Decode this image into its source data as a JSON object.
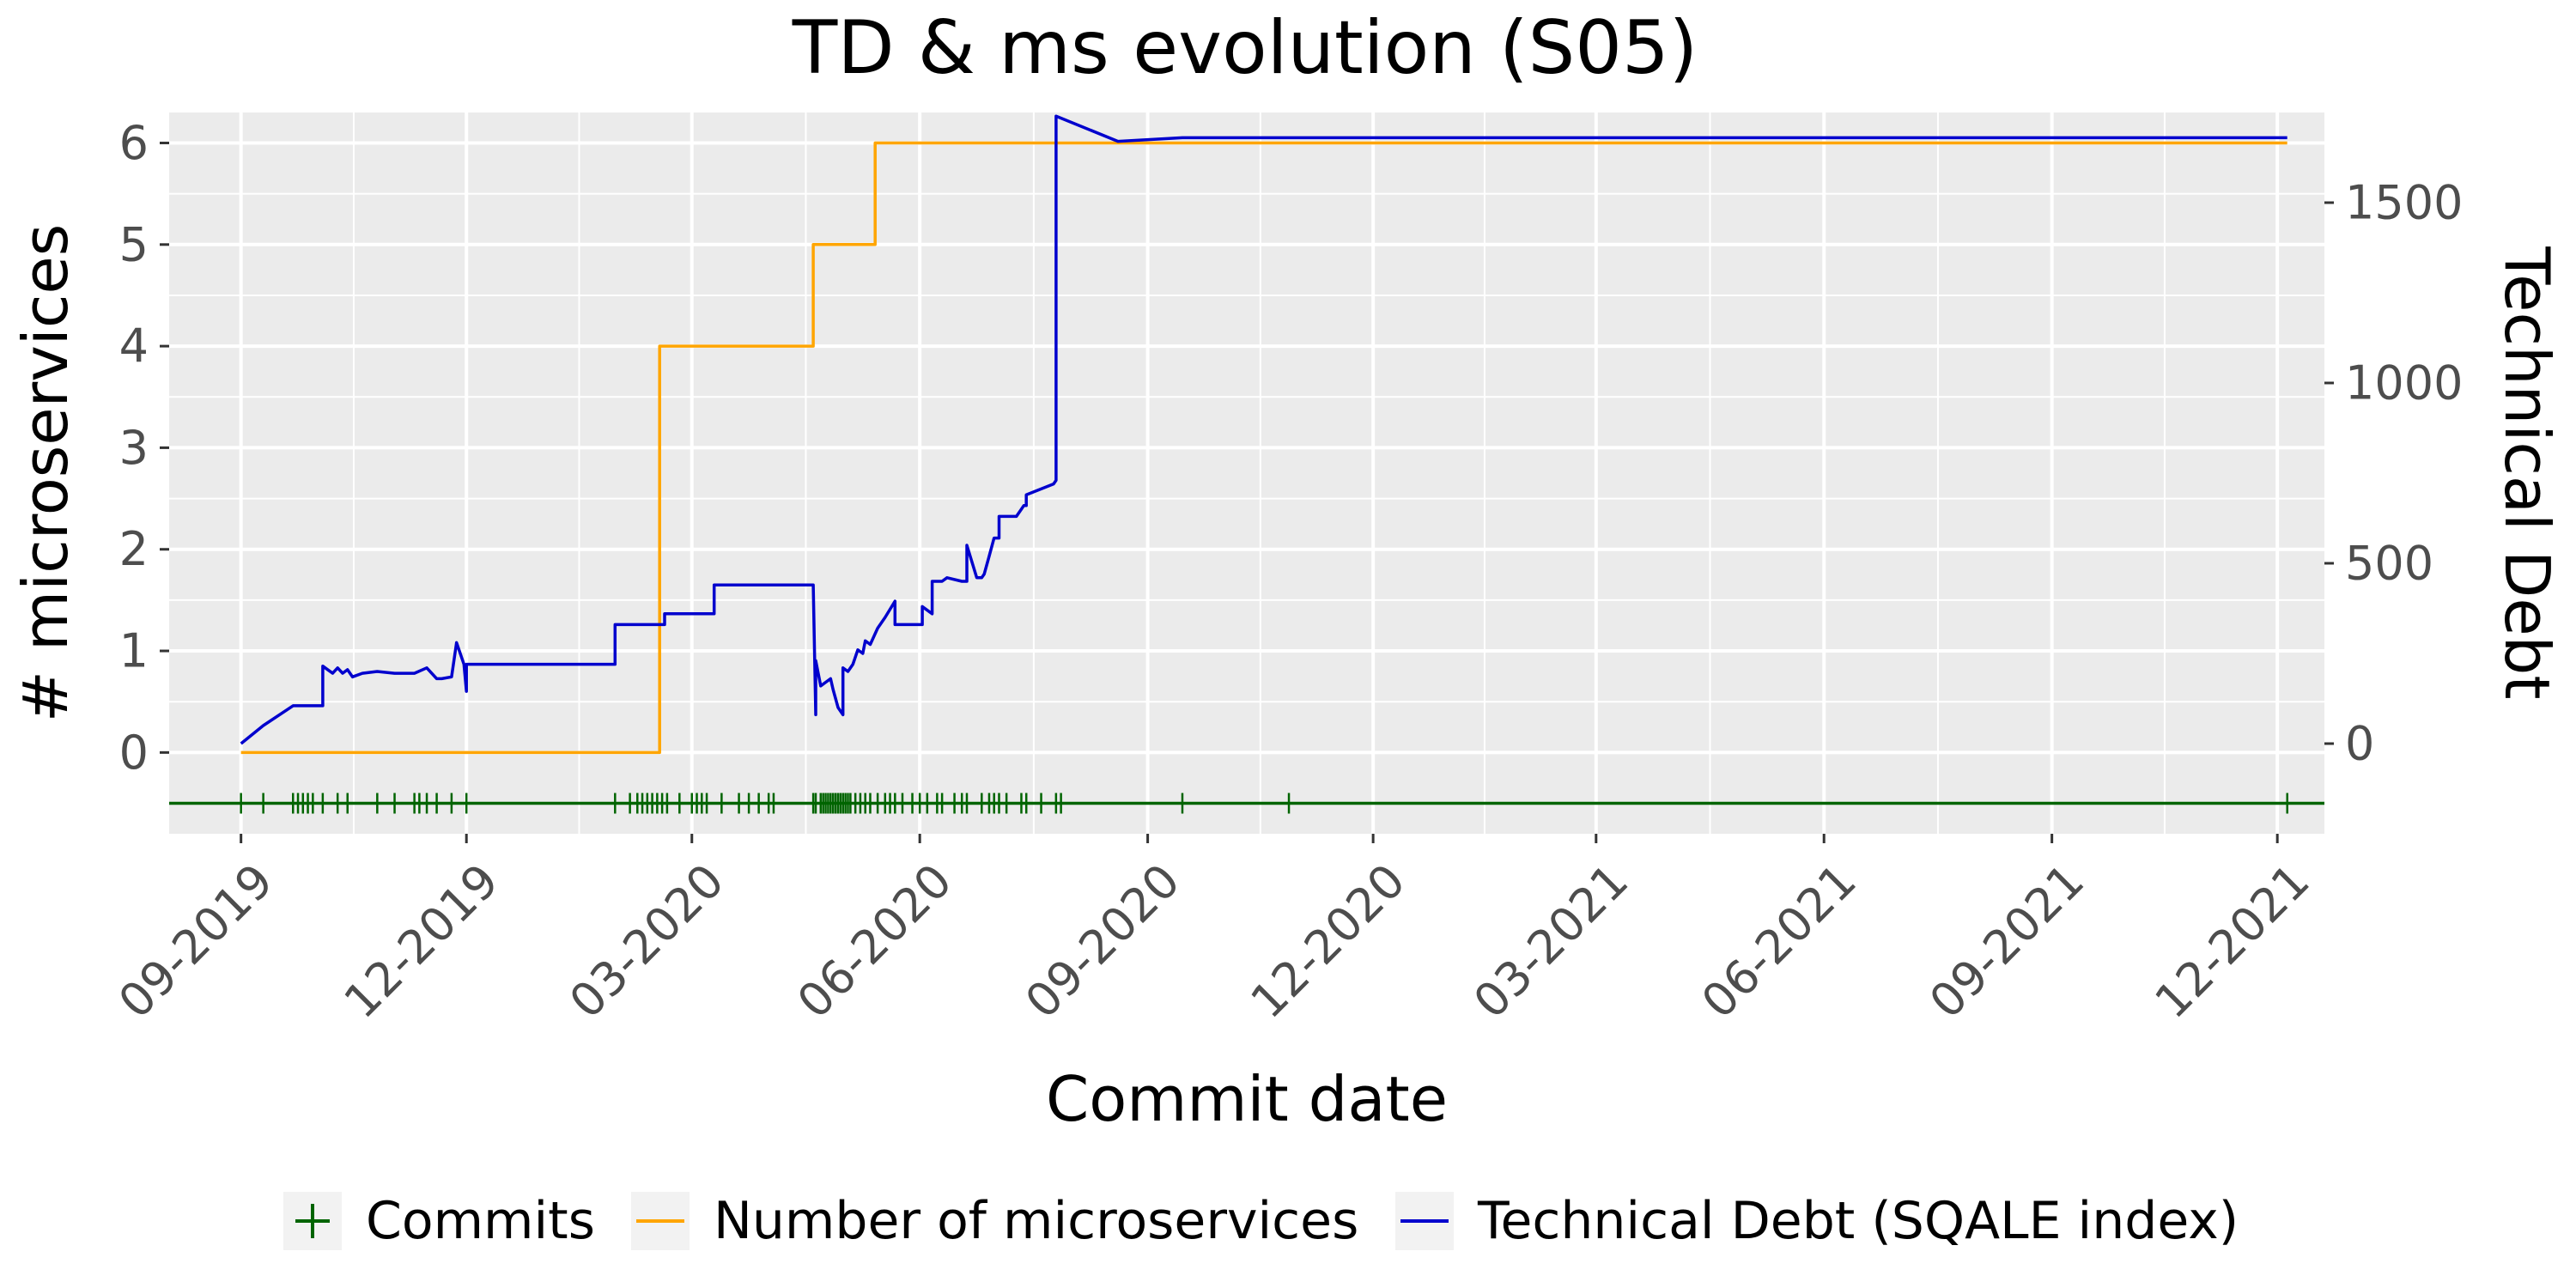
{
  "chart_data": {
    "type": "line",
    "title": "TD & ms evolution (S05)",
    "xlabel": "Commit date",
    "ylabel_left": "# microservices",
    "ylabel_right": "Technical Debt",
    "x_ticks": [
      "09-2019",
      "12-2019",
      "03-2020",
      "06-2020",
      "09-2020",
      "12-2020",
      "03-2021",
      "06-2021",
      "09-2021",
      "12-2021"
    ],
    "x_range": [
      "2019-08-03",
      "2021-12-20"
    ],
    "y_left_range": [
      -0.8,
      6.3
    ],
    "y_left_ticks": [
      0,
      1,
      2,
      3,
      4,
      5,
      6
    ],
    "y_right_range": [
      -250,
      1750
    ],
    "y_right_ticks": [
      0,
      500,
      1000,
      1500
    ],
    "grid": true,
    "legend_position": "bottom",
    "colors": {
      "commits": "#006400",
      "microservices": "#FFA500",
      "technical_debt": "#0000CD",
      "panel": "#EBEBEB",
      "grid": "#FFFFFF"
    },
    "legend": [
      {
        "key": "commits",
        "label": "Commits",
        "symbol": "plus"
      },
      {
        "key": "microservices",
        "label": "Number of microservices",
        "symbol": "line"
      },
      {
        "key": "technical_debt",
        "label": "Technical Debt (SQALE index)",
        "symbol": "line"
      }
    ],
    "commits_y": -0.5,
    "series": [
      {
        "key": "microservices",
        "name": "Number of microservices",
        "axis": "left",
        "step": true,
        "x": [
          "2019-09-01",
          "2020-02-17",
          "2020-02-18",
          "2020-04-19",
          "2020-05-14",
          "2021-12-05"
        ],
        "y": [
          0,
          4,
          4,
          5,
          6,
          6
        ]
      },
      {
        "key": "technical_debt",
        "name": "Technical Debt (SQALE index)",
        "axis": "right",
        "step": false,
        "x": [
          "2019-09-01",
          "2019-09-10",
          "2019-09-22",
          "2019-10-04",
          "2019-10-04",
          "2019-10-08",
          "2019-10-10",
          "2019-10-12",
          "2019-10-14",
          "2019-10-16",
          "2019-10-20",
          "2019-10-26",
          "2019-11-02",
          "2019-11-10",
          "2019-11-15",
          "2019-11-19",
          "2019-11-21",
          "2019-11-25",
          "2019-11-27",
          "2019-11-30",
          "2019-12-01",
          "2019-12-01",
          "2019-12-15",
          "2020-01-15",
          "2020-01-30",
          "2020-01-30",
          "2020-02-05",
          "2020-02-16",
          "2020-02-19",
          "2020-02-19",
          "2020-03-05",
          "2020-03-08",
          "2020-03-10",
          "2020-03-10",
          "2020-03-12",
          "2020-03-13",
          "2020-04-19",
          "2020-04-19",
          "2020-04-20",
          "2020-04-20",
          "2020-04-22",
          "2020-04-24",
          "2020-04-26",
          "2020-04-27",
          "2020-04-29",
          "2020-05-01",
          "2020-05-01",
          "2020-05-03",
          "2020-05-05",
          "2020-05-07",
          "2020-05-09",
          "2020-05-10",
          "2020-05-12",
          "2020-05-15",
          "2020-05-18",
          "2020-05-22",
          "2020-05-22",
          "2020-05-27",
          "2020-06-02",
          "2020-06-02",
          "2020-06-06",
          "2020-06-06",
          "2020-06-10",
          "2020-06-12",
          "2020-06-18",
          "2020-06-20",
          "2020-06-20",
          "2020-06-24",
          "2020-06-26",
          "2020-06-27",
          "2020-06-29",
          "2020-07-01",
          "2020-07-03",
          "2020-07-03",
          "2020-07-10",
          "2020-07-12",
          "2020-07-13",
          "2020-07-14",
          "2020-07-14",
          "2020-07-25",
          "2020-07-26",
          "2020-07-26",
          "2020-08-20",
          "2020-09-15",
          "2021-12-05"
        ],
        "y": [
          0,
          50,
          105,
          105,
          215,
          195,
          210,
          195,
          205,
          185,
          195,
          200,
          195,
          195,
          210,
          180,
          180,
          185,
          280,
          220,
          145,
          220,
          220,
          220,
          220,
          330,
          330,
          330,
          330,
          360,
          360,
          360,
          360,
          440,
          440,
          440,
          440,
          440,
          80,
          230,
          160,
          170,
          180,
          150,
          100,
          80,
          210,
          200,
          220,
          260,
          250,
          285,
          275,
          320,
          350,
          395,
          330,
          330,
          330,
          380,
          360,
          450,
          450,
          460,
          450,
          450,
          550,
          460,
          460,
          470,
          520,
          570,
          570,
          630,
          630,
          650,
          660,
          660,
          690,
          720,
          730,
          1740,
          1670,
          1680,
          1680
        ]
      }
    ],
    "commits": [
      "2019-09-01",
      "2019-09-10",
      "2019-09-22",
      "2019-09-24",
      "2019-09-26",
      "2019-09-28",
      "2019-09-30",
      "2019-10-04",
      "2019-10-10",
      "2019-10-14",
      "2019-10-26",
      "2019-11-02",
      "2019-11-10",
      "2019-11-12",
      "2019-11-15",
      "2019-11-19",
      "2019-11-25",
      "2019-12-01",
      "2020-01-30",
      "2020-02-05",
      "2020-02-08",
      "2020-02-10",
      "2020-02-12",
      "2020-02-14",
      "2020-02-16",
      "2020-02-18",
      "2020-02-20",
      "2020-02-25",
      "2020-03-01",
      "2020-03-03",
      "2020-03-05",
      "2020-03-07",
      "2020-03-13",
      "2020-03-20",
      "2020-03-24",
      "2020-03-28",
      "2020-04-01",
      "2020-04-03",
      "2020-04-19",
      "2020-04-20",
      "2020-04-22",
      "2020-04-23",
      "2020-04-24",
      "2020-04-25",
      "2020-04-26",
      "2020-04-27",
      "2020-04-28",
      "2020-04-29",
      "2020-04-30",
      "2020-05-01",
      "2020-05-02",
      "2020-05-03",
      "2020-05-04",
      "2020-05-06",
      "2020-05-08",
      "2020-05-10",
      "2020-05-12",
      "2020-05-15",
      "2020-05-18",
      "2020-05-20",
      "2020-05-22",
      "2020-05-25",
      "2020-05-29",
      "2020-06-01",
      "2020-06-04",
      "2020-06-08",
      "2020-06-10",
      "2020-06-15",
      "2020-06-18",
      "2020-06-20",
      "2020-06-26",
      "2020-06-29",
      "2020-07-01",
      "2020-07-03",
      "2020-07-06",
      "2020-07-12",
      "2020-07-14",
      "2020-07-20",
      "2020-07-26",
      "2020-07-28",
      "2020-09-15",
      "2020-10-28",
      "2021-12-05"
    ]
  }
}
